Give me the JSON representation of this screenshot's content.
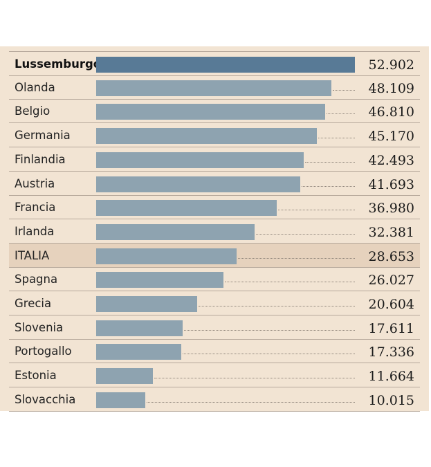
{
  "chart_data": {
    "type": "bar",
    "orientation": "horizontal",
    "highlighted": [
      "Lussemburgo",
      "ITALIA"
    ],
    "xlim": [
      0,
      52902
    ],
    "categories": [
      "Lussemburgo",
      "Olanda",
      "Belgio",
      "Germania",
      "Finlandia",
      "Austria",
      "Francia",
      "Irlanda",
      "ITALIA",
      "Spagna",
      "Grecia",
      "Slovenia",
      "Portogallo",
      "Estonia",
      "Slovacchia"
    ],
    "values": [
      52902,
      48109,
      46810,
      45170,
      42493,
      41693,
      36980,
      32381,
      28653,
      26027,
      20604,
      17611,
      17336,
      11664,
      10015
    ],
    "value_labels": [
      "52.902",
      "48.109",
      "46.810",
      "45.170",
      "42.493",
      "41.693",
      "36.980",
      "32.381",
      "28.653",
      "26.027",
      "20.604",
      "17.611",
      "17.336",
      "11.664",
      "10.015"
    ],
    "colors": {
      "bar": "#8ea3b0",
      "bar_top": "#587a96",
      "background": "#f2e4d3",
      "highlight_row": "#e6d2bd"
    }
  }
}
